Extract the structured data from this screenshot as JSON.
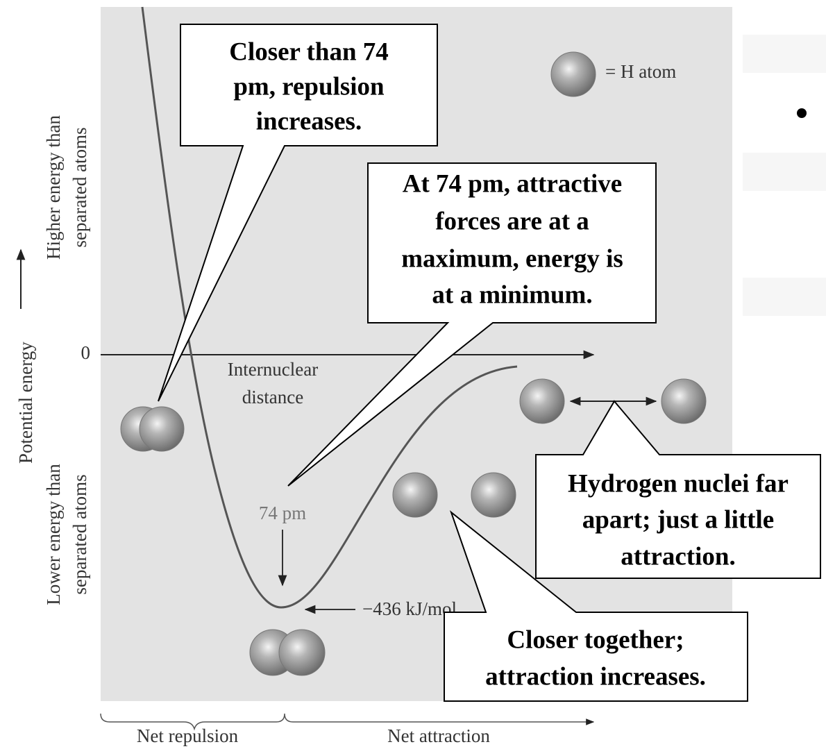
{
  "legend": "= H atom",
  "y_axis": {
    "label": "Potential energy",
    "zero": "0",
    "upper": [
      "Higher energy than",
      "separated atoms"
    ],
    "lower": [
      "Lower energy than",
      "separated atoms"
    ]
  },
  "x_axis": {
    "label": [
      "Internuclear",
      "distance"
    ],
    "regions": [
      "Net repulsion",
      "Net attraction"
    ]
  },
  "minimum": {
    "distance": "74 pm",
    "energy": "−436 kJ/mol"
  },
  "callouts": [
    {
      "lines": [
        "Closer than 74",
        "pm, repulsion",
        "increases."
      ]
    },
    {
      "lines": [
        "At 74 pm, attractive",
        "forces are at a",
        "maximum, energy is",
        "at a minimum."
      ]
    },
    {
      "lines": [
        "Hydrogen nuclei far",
        "apart; just a little",
        "attraction."
      ]
    },
    {
      "lines": [
        "Closer together;",
        "attraction increases."
      ]
    }
  ]
}
